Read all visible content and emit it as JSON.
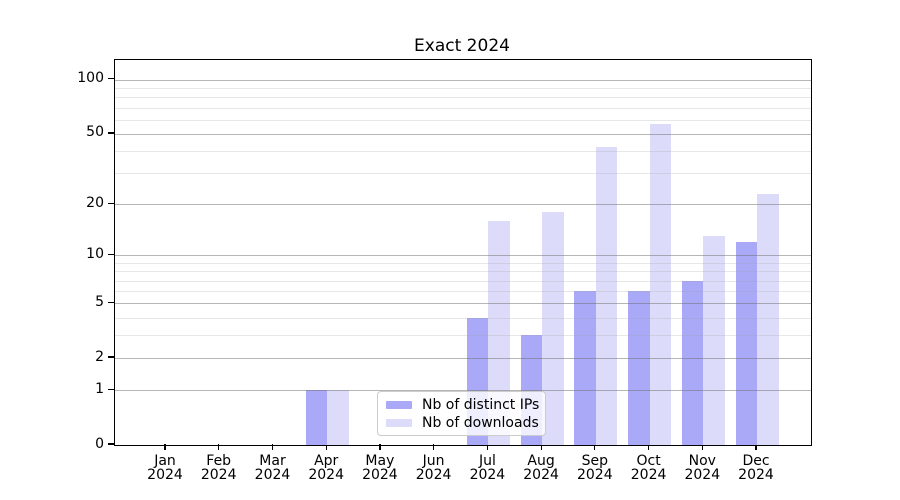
{
  "chart_data": {
    "type": "bar",
    "title": "Exact 2024",
    "yscale": "log1p",
    "categories": [
      "Jan",
      "Feb",
      "Mar",
      "Apr",
      "May",
      "Jun",
      "Jul",
      "Aug",
      "Sep",
      "Oct",
      "Nov",
      "Dec"
    ],
    "category_year": "2024",
    "series": [
      {
        "name": "Nb of distinct IPs",
        "color": "#a9a9f7",
        "values": [
          0,
          0,
          0,
          1,
          0,
          0,
          4,
          3,
          6,
          6,
          7,
          12
        ]
      },
      {
        "name": "Nb of downloads",
        "color": "#dcdcfa",
        "values": [
          0,
          0,
          0,
          1,
          0,
          0,
          16,
          18,
          42,
          57,
          13,
          23
        ]
      }
    ],
    "y_major_ticks": [
      0,
      1,
      2,
      5,
      10,
      20,
      50,
      100
    ],
    "y_minor_gridlines": [
      3,
      4,
      6,
      7,
      8,
      9,
      30,
      40,
      60,
      70,
      80,
      90
    ],
    "ylim": [
      0,
      127
    ],
    "grid": "on",
    "legend_position": "inside lower-center",
    "xlabel": "",
    "ylabel": ""
  },
  "colors": {
    "bar_distinct_ips": "#a9a9f7",
    "bar_downloads": "#dcdcfa",
    "grid_major": "#b5b5b5",
    "grid_minor": "#e7e7e7",
    "spine": "#000000",
    "background": "#ffffff",
    "legend_border": "#cccccc"
  }
}
